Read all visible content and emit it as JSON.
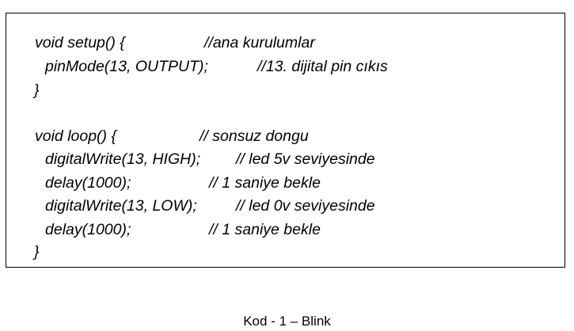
{
  "code": {
    "line1": {
      "code": "void setup() {",
      "comment": "//ana kurulumlar"
    },
    "line2": {
      "code": "pinMode(13, OUTPUT);",
      "comment": "//13. dijital pin cıkıs"
    },
    "line3": {
      "code": "}"
    },
    "line4": {
      "code": "void loop() {",
      "comment": "// sonsuz dongu"
    },
    "line5": {
      "code": "digitalWrite(13, HIGH);",
      "comment": "// led 5v seviyesinde"
    },
    "line6": {
      "code": "delay(1000);",
      "comment": "// 1 saniye bekle"
    },
    "line7": {
      "code": "digitalWrite(13, LOW);",
      "comment": "// led 0v seviyesinde"
    },
    "line8": {
      "code": "delay(1000);",
      "comment": "// 1 saniye bekle"
    },
    "line9": {
      "code": "}"
    }
  },
  "caption": "Kod - 1 – Blink"
}
